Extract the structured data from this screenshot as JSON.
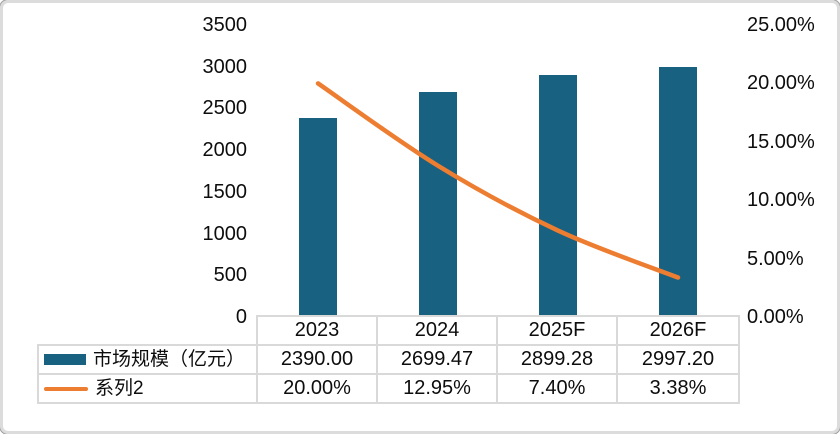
{
  "chart_data": {
    "type": "bar",
    "subtype": "combo-bar-line-with-data-table",
    "title": "",
    "categories": [
      "2023",
      "2024",
      "2025F",
      "2026F"
    ],
    "series": [
      {
        "name": "市场规模（亿元）",
        "chart": "bar",
        "axis": "left",
        "color": "#196180",
        "values": [
          2390.0,
          2699.47,
          2899.28,
          2997.2
        ],
        "labels": [
          "2390.00",
          "2699.47",
          "2899.28",
          "2997.20"
        ]
      },
      {
        "name": "系列2",
        "chart": "line",
        "axis": "right",
        "color": "#ED7D31",
        "values": [
          20.0,
          12.95,
          7.4,
          3.38
        ],
        "labels": [
          "20.00%",
          "12.95%",
          "7.40%",
          "3.38%"
        ]
      }
    ],
    "left_axis": {
      "min": 0,
      "max": 3500,
      "step": 500,
      "tick_labels": [
        "3500",
        "3000",
        "2500",
        "2000",
        "1500",
        "1000",
        "500",
        "0"
      ]
    },
    "right_axis": {
      "min": 0,
      "max": 25,
      "step": 5,
      "tick_labels": [
        "25.00%",
        "20.00%",
        "15.00%",
        "10.00%",
        "5.00%",
        "0.00%"
      ]
    },
    "grid": false,
    "legend_position": "data-table-left",
    "colors": {
      "bar": "#196180",
      "line": "#ED7D31",
      "table_border": "#d9d9d9",
      "text": "#0d0d0d"
    }
  }
}
